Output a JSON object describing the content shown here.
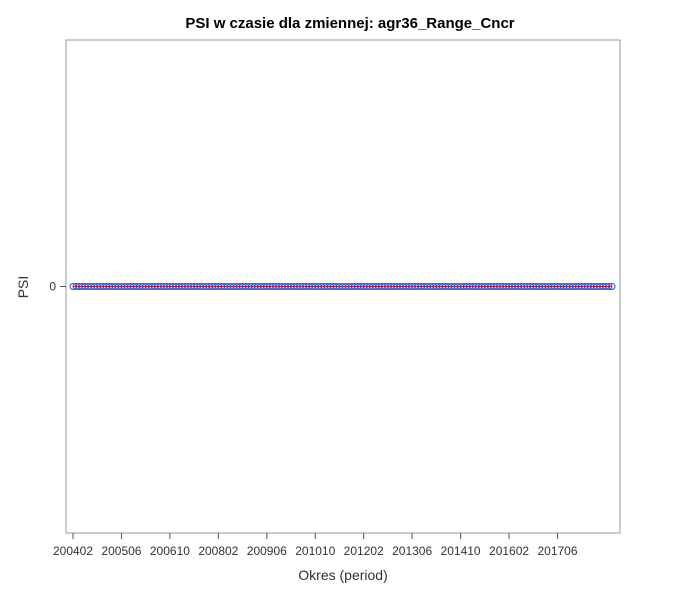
{
  "chart_data": {
    "type": "line",
    "title": "PSI w czasie dla zmiennej: agr36_Range_Cncr",
    "xlabel": "Okres (period)",
    "ylabel": "PSI",
    "x_tick_labels": [
      "200402",
      "200506",
      "200610",
      "200802",
      "200906",
      "201010",
      "201202",
      "201306",
      "201410",
      "201602",
      "201706"
    ],
    "x_start": "200402",
    "x_end": "201812",
    "y_tick_labels": [
      "0"
    ],
    "ylim": [
      -1,
      1
    ],
    "grid": false,
    "legend": "none",
    "series": [
      {
        "marker": "circle",
        "line_color": "#ff0000",
        "marker_color": "#1f4fd8",
        "constant_value": 0,
        "frequency": "monthly"
      }
    ]
  }
}
